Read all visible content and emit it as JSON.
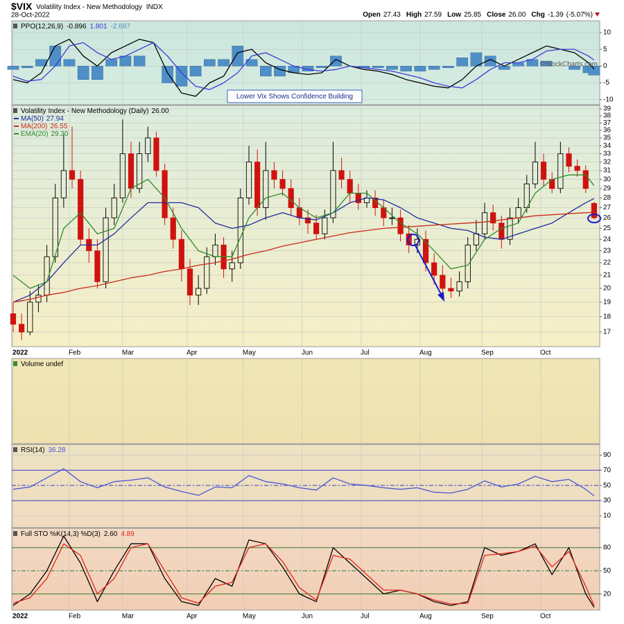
{
  "header": {
    "symbol": "$VIX",
    "name": "Volatility Index - New Methodology",
    "exchange": "INDX",
    "date": "28-Oct-2022",
    "credit": "©StockCharts.com",
    "quote": [
      {
        "label": "Open",
        "value": 27.43
      },
      {
        "label": "High",
        "value": 27.59
      },
      {
        "label": "Low",
        "value": 25.85
      },
      {
        "label": "Close",
        "value": {
          "value": 26,
          "label": "26.00"
        }
      },
      {
        "label": "Chg",
        "value": -1.39,
        "pct": {
          "value": -5.07,
          "label": "(-5.07%)"
        }
      }
    ]
  },
  "chart_data": [
    {
      "type": "line",
      "title": "PPO(12,26,9)",
      "annotation": "Lower Vix Shows Confidence Building",
      "x": [
        0,
        5,
        10,
        15,
        20,
        25,
        30,
        35,
        40,
        45,
        50,
        55,
        60,
        65,
        70,
        75,
        80,
        85,
        90,
        95,
        100,
        105,
        110,
        115,
        120,
        125,
        130,
        135,
        140,
        145,
        150,
        155,
        160,
        165,
        170,
        175,
        180,
        185,
        190,
        195,
        200,
        205,
        207
      ],
      "series": [
        {
          "color": "#000000",
          "latest": -0.896,
          "values": [
            -4,
            -5,
            -2,
            6,
            8,
            3,
            0,
            4,
            6,
            8,
            7,
            -2,
            -8,
            -9,
            -5,
            -3,
            4,
            5,
            1,
            -1,
            -2,
            -2.5,
            -2,
            2,
            0,
            -1,
            -1.5,
            -2.5,
            -4,
            -5,
            -6,
            -6.5,
            -4,
            0,
            2,
            0,
            2,
            4,
            6,
            5,
            4,
            1,
            -0.896
          ]
        },
        {
          "color": "#3b3bd6",
          "latest": 1.801,
          "values": [
            -3,
            -4.5,
            -4,
            0,
            6,
            7,
            4,
            2,
            3,
            5,
            7,
            3,
            -2,
            -6,
            -7,
            -5,
            -2,
            3,
            4,
            2,
            0,
            -1,
            -1.5,
            -1,
            0,
            -0.5,
            -1,
            -1.5,
            -2.5,
            -3.5,
            -5,
            -6,
            -6.5,
            -4,
            -1,
            1,
            1,
            2,
            4.5,
            5,
            5,
            3,
            1.801
          ]
        },
        {
          "type": "bar",
          "color": "#4f8fc8",
          "latest": -2.697,
          "values": [
            -1,
            -0.5,
            2,
            6,
            2,
            -4,
            -4,
            2,
            3,
            3,
            0,
            -5,
            -6,
            -3,
            2,
            2,
            6,
            2,
            -3,
            -3,
            -2,
            -1.5,
            -0.5,
            3,
            0,
            -0.5,
            -0.5,
            -1,
            -1.5,
            -1.5,
            -1,
            -0.5,
            2.5,
            4,
            3,
            -1,
            1,
            2,
            1.5,
            0,
            -1,
            -2,
            -2.697
          ]
        }
      ],
      "ylim": [
        -11.5,
        13.5
      ],
      "yticks": [
        10,
        5,
        0,
        -5,
        -10
      ]
    },
    {
      "type": "candlestick",
      "title": "Volatility Index - New Methodology (Daily)",
      "latest": {
        "value": 26,
        "label": "26.00"
      },
      "log": true,
      "ylim": [
        16.1,
        39.5
      ],
      "yticks": [
        39,
        38,
        37,
        36,
        35,
        34,
        33,
        32,
        31,
        30,
        29,
        28,
        27,
        26,
        25,
        24,
        23,
        22,
        21,
        20,
        19,
        18,
        17
      ],
      "xlim": [
        0,
        209
      ],
      "xticks": [
        {
          "value": 0,
          "label": "2022"
        },
        {
          "value": 20,
          "label": "Feb"
        },
        {
          "value": 39,
          "label": "Mar"
        },
        {
          "value": 62,
          "label": "Apr"
        },
        {
          "value": 82,
          "label": "May"
        },
        {
          "value": 103,
          "label": "Jun"
        },
        {
          "value": 124,
          "label": "Jul"
        },
        {
          "value": 145,
          "label": "Aug"
        },
        {
          "value": 167,
          "label": "Sep"
        },
        {
          "value": 188,
          "label": "Oct"
        }
      ],
      "up_color": "#000000",
      "down_color": "#d0120f",
      "x": [
        0,
        3,
        6,
        9,
        12,
        15,
        18,
        21,
        24,
        27,
        30,
        33,
        36,
        39,
        42,
        45,
        48,
        51,
        54,
        57,
        60,
        63,
        66,
        69,
        72,
        75,
        78,
        81,
        84,
        87,
        90,
        93,
        96,
        99,
        102,
        105,
        108,
        111,
        114,
        117,
        120,
        123,
        126,
        129,
        132,
        135,
        138,
        141,
        144,
        147,
        150,
        153,
        156,
        159,
        162,
        165,
        168,
        171,
        174,
        177,
        180,
        183,
        186,
        189,
        192,
        195,
        198,
        201,
        204,
        207
      ],
      "open": [
        18.2,
        17.5,
        17.0,
        19,
        19.5,
        22.5,
        28,
        31,
        30,
        24,
        23,
        20.5,
        26,
        28,
        33,
        29,
        33,
        35,
        31,
        26,
        24,
        21.5,
        19.5,
        20,
        22.5,
        23.5,
        21.5,
        22,
        28,
        32,
        27,
        31,
        30,
        29,
        27,
        26,
        25.5,
        24.5,
        26,
        31,
        30,
        28.5,
        27.5,
        28,
        27,
        26,
        26,
        24.5,
        23.5,
        24,
        22,
        21,
        20,
        19.8,
        20.5,
        23.5,
        24.5,
        26.5,
        25.5,
        24,
        26,
        27,
        29.5,
        32,
        30,
        29,
        33,
        31.5,
        31,
        27.43
      ],
      "high": [
        19.0,
        18.2,
        19.8,
        20.3,
        23.5,
        29.5,
        35.5,
        36.5,
        31,
        25,
        24,
        27,
        29.5,
        37.5,
        34.5,
        34.5,
        36.5,
        35.8,
        31.8,
        27,
        24.8,
        22.3,
        21,
        23.3,
        24.5,
        24.2,
        23,
        29,
        34,
        33.5,
        34.5,
        32,
        31,
        30,
        28,
        26.8,
        26.3,
        26.8,
        34.5,
        32.5,
        31,
        29.5,
        28.8,
        28.8,
        27.8,
        27,
        26.8,
        25.3,
        25,
        24.8,
        22.8,
        21.8,
        20.8,
        21.3,
        24.2,
        25.8,
        27.5,
        27.3,
        26.2,
        27,
        28,
        30.5,
        34.5,
        33,
        30.8,
        34.5,
        33.8,
        32.3,
        31.6,
        27.59
      ],
      "low": [
        17.0,
        16.5,
        16.8,
        18.3,
        19,
        22,
        27,
        29,
        23.5,
        22,
        20,
        20,
        25.3,
        27.5,
        28,
        28.5,
        32,
        30.3,
        25.3,
        23.2,
        20.5,
        18.8,
        18.8,
        19.6,
        21.8,
        20.8,
        20.5,
        21.5,
        27.3,
        26.2,
        25.8,
        29,
        28.2,
        26.2,
        25.3,
        24.5,
        24,
        24,
        25.5,
        29,
        27.5,
        26.8,
        27,
        26.2,
        25.2,
        25.3,
        23.8,
        22.8,
        22.8,
        21.3,
        20.3,
        19.4,
        19.3,
        19.4,
        20,
        23,
        24,
        24.8,
        23.2,
        23.5,
        25.5,
        26.5,
        29,
        29.2,
        28.5,
        28.5,
        30.8,
        30.3,
        28.5,
        25.85
      ],
      "close": [
        17.5,
        17.0,
        19,
        19.5,
        22.5,
        28,
        31,
        30,
        24,
        23,
        20.5,
        26,
        28,
        33,
        29,
        33,
        35,
        31,
        26,
        24,
        21.5,
        19.5,
        20,
        22.5,
        23.5,
        21.5,
        22,
        28,
        32,
        27,
        31,
        30,
        29,
        27,
        26,
        25.5,
        24.5,
        26,
        31,
        30,
        28.5,
        27.5,
        28,
        27,
        26,
        26,
        24.5,
        23.5,
        24,
        22,
        21,
        20,
        19.8,
        20.5,
        23.5,
        24.5,
        26.5,
        25.5,
        24,
        26,
        27,
        29.5,
        32,
        30,
        29,
        33,
        31.5,
        31,
        29,
        26
      ],
      "series": [
        {
          "name": "MA(50)",
          "color": "#1f2a9e",
          "latest": 27.94,
          "x": [
            0,
            6,
            12,
            18,
            24,
            30,
            36,
            42,
            48,
            54,
            60,
            66,
            72,
            78,
            84,
            90,
            96,
            102,
            108,
            114,
            120,
            126,
            132,
            138,
            144,
            150,
            156,
            162,
            168,
            174,
            180,
            186,
            192,
            198,
            204,
            207
          ],
          "values": [
            19,
            19.5,
            20.5,
            22,
            23.5,
            23.5,
            24.5,
            26,
            27.5,
            27.5,
            27.5,
            27,
            25.5,
            25,
            25.3,
            26,
            26.5,
            26,
            25.8,
            26.5,
            27.5,
            28,
            27.8,
            27,
            26,
            25.5,
            25,
            24.8,
            24.2,
            24,
            24.5,
            25,
            25.5,
            26.5,
            27.5,
            27.94
          ]
        },
        {
          "name": "MA(200)",
          "color": "#cc2a1a",
          "latest": 26.55,
          "x": [
            0,
            6,
            12,
            18,
            24,
            30,
            36,
            42,
            48,
            54,
            60,
            66,
            72,
            78,
            84,
            90,
            96,
            102,
            108,
            114,
            120,
            126,
            132,
            138,
            144,
            150,
            156,
            162,
            168,
            174,
            180,
            186,
            192,
            198,
            204,
            207
          ],
          "values": [
            19,
            19.2,
            19.5,
            19.7,
            20,
            20.2,
            20.5,
            20.8,
            21,
            21.3,
            21.5,
            21.8,
            22,
            22.3,
            22.7,
            23,
            23.4,
            23.7,
            24,
            24.3,
            24.6,
            24.8,
            25,
            25.1,
            25.2,
            25.3,
            25.4,
            25.5,
            25.6,
            25.8,
            26,
            26.2,
            26.3,
            26.4,
            26.5,
            26.55
          ]
        },
        {
          "name": "EMA(20)",
          "color": "#2e8b2e",
          "latest": {
            "value": 29.3,
            "label": "29.30"
          },
          "x": [
            0,
            6,
            12,
            18,
            24,
            30,
            36,
            42,
            48,
            54,
            60,
            66,
            72,
            78,
            84,
            90,
            96,
            102,
            108,
            114,
            120,
            126,
            132,
            138,
            144,
            150,
            156,
            162,
            168,
            174,
            180,
            186,
            192,
            198,
            204,
            207
          ],
          "values": [
            21,
            20,
            20.5,
            25,
            26.5,
            24.5,
            25,
            29,
            30,
            28,
            25,
            23,
            22.5,
            22.5,
            26,
            28,
            28.5,
            27,
            26,
            26.5,
            28.5,
            28.5,
            27,
            25.5,
            24.5,
            23,
            21.5,
            21.8,
            24,
            25,
            25.5,
            28.5,
            30,
            30.5,
            30.5,
            29.3
          ]
        }
      ]
    },
    {
      "type": "bar",
      "title": "Volume undef"
    },
    {
      "type": "line",
      "title": "RSI(14)",
      "x": [
        0,
        6,
        12,
        18,
        24,
        30,
        36,
        42,
        48,
        54,
        60,
        66,
        72,
        78,
        84,
        90,
        96,
        102,
        108,
        114,
        120,
        126,
        132,
        138,
        144,
        150,
        156,
        162,
        168,
        174,
        180,
        186,
        192,
        198,
        204,
        207
      ],
      "series": [
        {
          "color": "#4a55d4",
          "latest": 36.28,
          "values": [
            45,
            48,
            60,
            72,
            55,
            47,
            55,
            57,
            60,
            48,
            42,
            37,
            48,
            47,
            63,
            55,
            52,
            47,
            44,
            60,
            52,
            50,
            47,
            45,
            47,
            41,
            40,
            45,
            56,
            48,
            52,
            62,
            55,
            58,
            45,
            36.28
          ]
        }
      ],
      "ylim": [
        -5.5,
        104
      ],
      "yticks": [
        90,
        70,
        50,
        30,
        10
      ],
      "ref_lines": [
        70,
        50,
        30
      ],
      "ref_color": "#3a3acc"
    },
    {
      "type": "line",
      "title": "Full STO %K(14,3) %D(3)",
      "x": [
        0,
        6,
        12,
        18,
        24,
        30,
        36,
        42,
        48,
        54,
        60,
        66,
        72,
        78,
        84,
        90,
        96,
        102,
        108,
        114,
        120,
        126,
        132,
        138,
        144,
        150,
        156,
        162,
        168,
        174,
        180,
        186,
        192,
        198,
        204,
        207
      ],
      "series": [
        {
          "color": "#000000",
          "latest": {
            "value": 2.6,
            "label": "2.60"
          },
          "values": [
            5,
            20,
            50,
            95,
            60,
            10,
            50,
            85,
            85,
            40,
            10,
            5,
            40,
            30,
            90,
            85,
            55,
            20,
            10,
            80,
            60,
            40,
            20,
            25,
            20,
            10,
            5,
            10,
            80,
            70,
            75,
            85,
            45,
            80,
            20,
            2.6
          ]
        },
        {
          "color": "#e0261b",
          "latest": 4.89,
          "values": [
            8,
            15,
            40,
            85,
            70,
            20,
            40,
            80,
            85,
            50,
            15,
            8,
            30,
            35,
            80,
            85,
            62,
            28,
            12,
            70,
            65,
            45,
            25,
            25,
            20,
            12,
            7,
            8,
            70,
            72,
            75,
            82,
            55,
            75,
            30,
            4.89
          ]
        }
      ],
      "ylim": [
        -1,
        105
      ],
      "yticks": [
        80,
        50,
        20
      ],
      "ref_lines": [
        80,
        50,
        20
      ],
      "ref_color": "#2f7d2f",
      "xlim": [
        0,
        209
      ],
      "xticks": [
        {
          "value": 0,
          "label": "2022"
        },
        {
          "value": 20,
          "label": "Feb"
        },
        {
          "value": 39,
          "label": "Mar"
        },
        {
          "value": 62,
          "label": "Apr"
        },
        {
          "value": 82,
          "label": "May"
        },
        {
          "value": 103,
          "label": "Jun"
        },
        {
          "value": 124,
          "label": "Jul"
        },
        {
          "value": 145,
          "label": "Aug"
        },
        {
          "value": 167,
          "label": "Sep"
        },
        {
          "value": 188,
          "label": "Oct"
        }
      ]
    }
  ]
}
